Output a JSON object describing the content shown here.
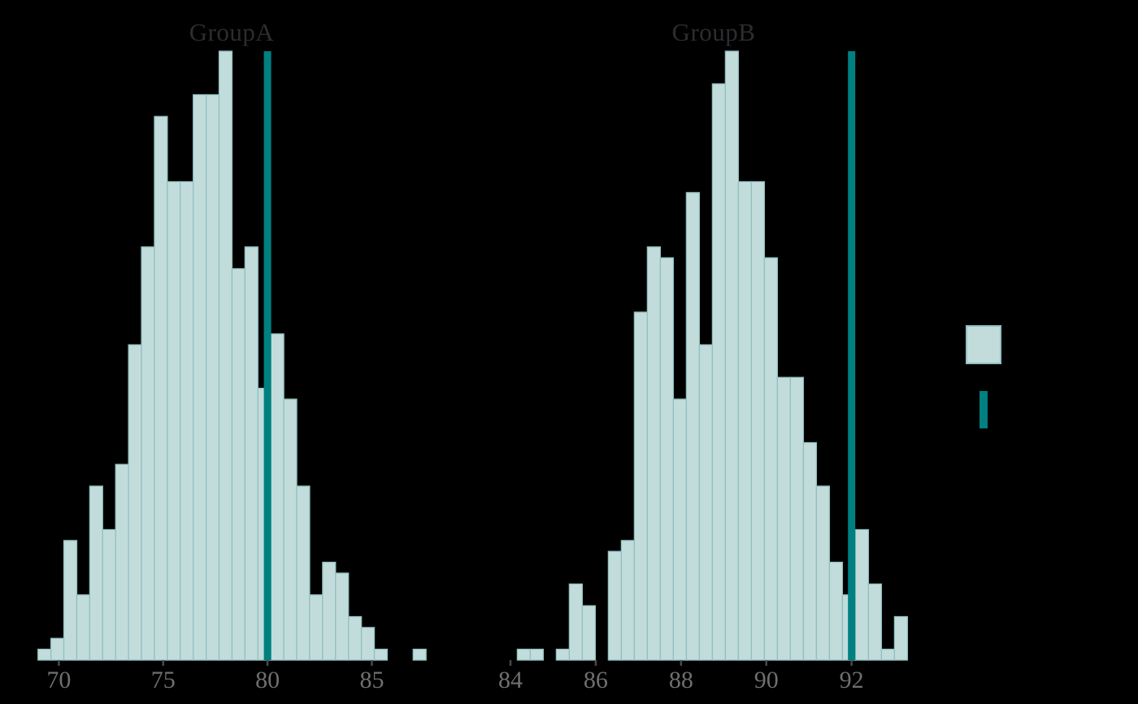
{
  "chart_data": [
    {
      "type": "histogram",
      "title": "GroupA",
      "xlabel": "",
      "ylabel": "",
      "bin_start": 69.0,
      "bin_width": 0.62,
      "counts": [
        1,
        2,
        11,
        6,
        16,
        12,
        18,
        29,
        38,
        50,
        44,
        44,
        52,
        52,
        56,
        36,
        38,
        25,
        30,
        24,
        16,
        6,
        9,
        8,
        4,
        3,
        1,
        0,
        0,
        1
      ],
      "vline_x": 80,
      "x_ticks": [
        70,
        75,
        80,
        85
      ],
      "xlim": [
        68.7,
        87.9
      ],
      "ylim": [
        0,
        56
      ],
      "grid": false,
      "legend_position": "right-outside"
    },
    {
      "type": "histogram",
      "title": "GroupB",
      "xlabel": "",
      "ylabel": "",
      "bin_start": 84.16,
      "bin_width": 0.305,
      "counts": [
        1,
        1,
        0,
        1,
        7,
        5,
        0,
        10,
        11,
        32,
        38,
        37,
        24,
        43,
        29,
        53,
        56,
        44,
        44,
        37,
        26,
        26,
        20,
        16,
        9,
        6,
        12,
        7,
        1,
        4
      ],
      "vline_x": 92,
      "x_ticks": [
        84,
        86,
        88,
        90,
        92
      ],
      "xlim": [
        83.9,
        93.6
      ],
      "ylim": [
        0,
        56
      ],
      "grid": false,
      "legend_position": "right-outside"
    }
  ],
  "legend": {
    "items": [
      {
        "swatch": "patch",
        "label": ""
      },
      {
        "swatch": "vline",
        "label": ""
      }
    ]
  },
  "colors": {
    "background": "#000000",
    "bar_fill": "#c2dcdc",
    "bar_edge": "#93c0c0",
    "vline": "#008080",
    "title_text": "#2d2d31",
    "tick_label": "#6f6f6f",
    "tick_mark": "#4a4a4a"
  }
}
